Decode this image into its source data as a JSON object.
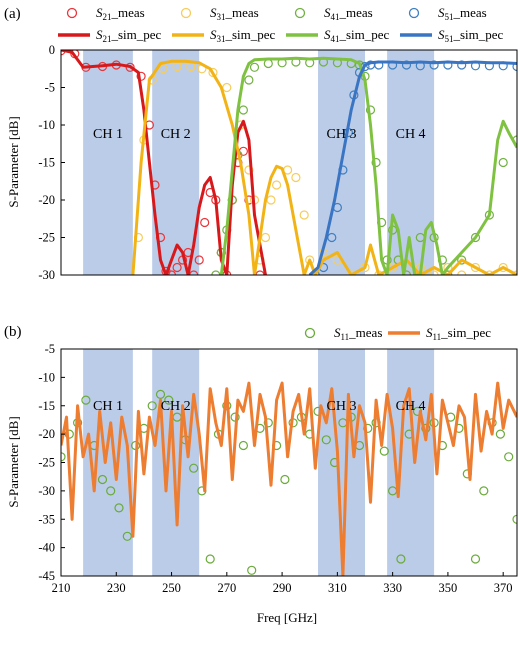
{
  "chart_data": [
    {
      "panel_label": "(a)",
      "type": "line",
      "ylabel": "S-Parameter [dB]",
      "xlabel": "",
      "xlim": [
        210,
        375
      ],
      "ylim": [
        -30,
        0
      ],
      "yticks": [
        0,
        -5,
        -10,
        -15,
        -20,
        -25,
        -30
      ],
      "grid": false,
      "legend_position": "top",
      "channel_bands": [
        {
          "label": "CH 1",
          "range": [
            218,
            236
          ]
        },
        {
          "label": "CH 2",
          "range": [
            243,
            260
          ]
        },
        {
          "label": "CH 3",
          "range": [
            303,
            320
          ]
        },
        {
          "label": "CH 4",
          "range": [
            328,
            345
          ]
        }
      ],
      "series": [
        {
          "name": "S21_meas",
          "label_main": "S",
          "label_sub": "21",
          "label_suffix": "_meas",
          "style": "marker",
          "color": "#e8363a",
          "x": [
            210,
            215,
            219,
            225,
            230,
            235,
            239,
            242,
            244,
            246,
            248,
            250,
            252,
            254,
            256,
            258,
            260,
            262,
            264,
            266,
            268,
            270,
            272,
            274,
            276,
            278,
            282
          ],
          "y": [
            -0.1,
            -0.5,
            -2.3,
            -2.2,
            -2.0,
            -2.3,
            -3.5,
            -10,
            -18,
            -25,
            -29.5,
            -30,
            -29,
            -28,
            -27,
            -30,
            -28,
            -23,
            -19,
            -20,
            -27,
            -30,
            -20,
            -15,
            -13.5,
            -20,
            -30
          ]
        },
        {
          "name": "S31_meas",
          "label_main": "S",
          "label_sub": "31",
          "label_suffix": "_meas",
          "style": "marker",
          "color": "#f6cc5c",
          "x": [
            238,
            240,
            243,
            247,
            252,
            257,
            261,
            265,
            270,
            275,
            278,
            280,
            282,
            284,
            286,
            288,
            292,
            295,
            298,
            300,
            302,
            305,
            310,
            315,
            320,
            325,
            330,
            335,
            340,
            345,
            350,
            355,
            360,
            365,
            370,
            375
          ],
          "y": [
            -25,
            -12,
            -4,
            -2.5,
            -2.2,
            -2.2,
            -2.5,
            -3,
            -5,
            -10,
            -16,
            -20,
            -28,
            -25,
            -20,
            -18,
            -16,
            -17,
            -22,
            -28,
            -30,
            -27,
            -28,
            -30,
            -29,
            -30,
            -29,
            -30,
            -29,
            -30,
            -29,
            -30,
            -29,
            -30,
            -29,
            -30
          ]
        },
        {
          "name": "S41_meas",
          "label_main": "S",
          "label_sub": "41",
          "label_suffix": "_meas",
          "style": "marker",
          "color": "#72b043",
          "x": [
            266,
            268,
            270,
            272,
            274,
            276,
            278,
            280,
            285,
            290,
            295,
            300,
            305,
            310,
            315,
            318,
            320,
            322,
            324,
            326,
            328,
            330,
            332,
            335,
            340,
            345,
            348,
            350,
            355,
            360,
            365,
            370,
            375
          ],
          "y": [
            -30,
            -27,
            -24,
            -20,
            -14,
            -8,
            -4,
            -2.3,
            -1.8,
            -1.7,
            -1.6,
            -1.7,
            -1.6,
            -1.7,
            -1.8,
            -2,
            -3.5,
            -8,
            -15,
            -23,
            -28,
            -24,
            -28,
            -30,
            -25,
            -25,
            -28,
            -30,
            -28,
            -25,
            -22,
            -15,
            -12
          ]
        },
        {
          "name": "S51_meas",
          "label_main": "S",
          "label_sub": "51",
          "label_suffix": "_meas",
          "style": "marker",
          "color": "#3f7fc0",
          "x": [
            302,
            305,
            308,
            310,
            312,
            314,
            316,
            318,
            320,
            322,
            325,
            330,
            335,
            340,
            345,
            350,
            355,
            360,
            365,
            370,
            375
          ],
          "y": [
            -30,
            -29,
            -25,
            -21,
            -16,
            -11,
            -6,
            -3,
            -2.2,
            -2,
            -2,
            -2,
            -2,
            -2.1,
            -2,
            -2,
            -2,
            -2.1,
            -2.1,
            -2.1,
            -2.2
          ]
        },
        {
          "name": "S21_sim_pec",
          "label_main": "S",
          "label_sub": "21",
          "label_suffix": "_sim_pec",
          "style": "line",
          "color": "#d7191c",
          "x": [
            210,
            214,
            218,
            225,
            230,
            235,
            238,
            240,
            242,
            244,
            246,
            248,
            250,
            252,
            254,
            256,
            258,
            260,
            262,
            264,
            266,
            268,
            270,
            272,
            274,
            276,
            278,
            280,
            284
          ],
          "y": [
            0,
            -0.3,
            -2.3,
            -2.1,
            -1.9,
            -2.2,
            -3,
            -8,
            -15,
            -22,
            -28,
            -30,
            -28,
            -26,
            -27,
            -30,
            -26,
            -21,
            -18,
            -17,
            -20,
            -28,
            -30,
            -18,
            -11,
            -9.5,
            -12,
            -22,
            -30
          ]
        },
        {
          "name": "S31_sim_pec",
          "label_main": "S",
          "label_sub": "31",
          "label_suffix": "_sim_pec",
          "style": "line",
          "color": "#f2b316",
          "x": [
            236,
            239,
            242,
            246,
            250,
            255,
            260,
            264,
            268,
            272,
            275,
            278,
            280,
            282,
            284,
            286,
            288,
            290,
            292,
            295,
            298,
            300,
            302,
            305,
            310,
            315,
            320,
            322,
            325,
            330,
            335,
            340,
            345,
            350,
            355,
            360,
            365,
            370,
            375
          ],
          "y": [
            -30,
            -15,
            -4,
            -1.8,
            -1.5,
            -1.5,
            -1.7,
            -2.5,
            -5,
            -10,
            -15,
            -22,
            -30,
            -25,
            -20,
            -17,
            -15.5,
            -15.8,
            -18,
            -24,
            -30,
            -28,
            -30,
            -28,
            -27,
            -30,
            -29,
            -26,
            -30,
            -29,
            -28,
            -30,
            -29,
            -30,
            -28,
            -29,
            -30,
            -29,
            -30
          ]
        },
        {
          "name": "S41_sim_pec",
          "label_main": "S",
          "label_sub": "41",
          "label_suffix": "_sim_pec",
          "style": "line",
          "color": "#7fc242",
          "x": [
            268,
            270,
            272,
            274,
            276,
            278,
            280,
            285,
            290,
            295,
            300,
            305,
            310,
            315,
            318,
            320,
            322,
            324,
            326,
            328,
            330,
            332,
            334,
            336,
            338,
            340,
            342,
            344,
            346,
            348,
            350,
            355,
            360,
            365,
            368,
            370,
            372,
            375
          ],
          "y": [
            -30,
            -24,
            -16,
            -8,
            -3.5,
            -1.8,
            -1.3,
            -1.2,
            -1.2,
            -1.1,
            -1.2,
            -1.1,
            -1.2,
            -1.3,
            -1.8,
            -4,
            -10,
            -18,
            -28,
            -30,
            -22,
            -24,
            -30,
            -25,
            -30,
            -30,
            -24,
            -23,
            -26,
            -30,
            -29,
            -27,
            -25,
            -22,
            -12,
            -9.5,
            -11,
            -13
          ]
        },
        {
          "name": "S51_sim_pec",
          "label_main": "S",
          "label_sub": "51",
          "label_suffix": "_sim_pec",
          "style": "line",
          "color": "#3a75c4",
          "x": [
            300,
            303,
            306,
            309,
            312,
            315,
            318,
            320,
            322,
            325,
            330,
            335,
            340,
            345,
            350,
            355,
            360,
            365,
            370,
            375
          ],
          "y": [
            -30,
            -29,
            -25,
            -20,
            -14,
            -8,
            -3.5,
            -2,
            -1.7,
            -1.6,
            -1.6,
            -1.7,
            -1.6,
            -1.7,
            -1.6,
            -1.7,
            -1.6,
            -1.7,
            -1.7,
            -1.8
          ]
        }
      ]
    },
    {
      "panel_label": "(b)",
      "type": "line",
      "ylabel": "S-Parameter [dB]",
      "xlabel": "Freq [GHz]",
      "xlim": [
        210,
        375
      ],
      "ylim": [
        -45,
        -5
      ],
      "yticks": [
        -5,
        -10,
        -15,
        -20,
        -25,
        -30,
        -35,
        -40,
        -45
      ],
      "xticks": [
        210,
        230,
        250,
        270,
        290,
        310,
        330,
        350,
        370
      ],
      "grid": false,
      "legend_position": "top-right",
      "channel_bands": [
        {
          "label": "CH 1",
          "range": [
            218,
            236
          ]
        },
        {
          "label": "CH 2",
          "range": [
            243,
            260
          ]
        },
        {
          "label": "CH 3",
          "range": [
            303,
            320
          ]
        },
        {
          "label": "CH 4",
          "range": [
            328,
            345
          ]
        }
      ],
      "series": [
        {
          "name": "S11_meas",
          "label_main": "S",
          "label_sub": "11",
          "label_suffix": "_meas",
          "style": "marker",
          "color": "#6aaa3a",
          "x": [
            210,
            213,
            216,
            219,
            222,
            225,
            228,
            231,
            234,
            237,
            240,
            243,
            246,
            249,
            252,
            255,
            258,
            261,
            264,
            267,
            270,
            273,
            276,
            279,
            282,
            285,
            288,
            291,
            294,
            297,
            300,
            303,
            306,
            309,
            312,
            315,
            318,
            321,
            324,
            327,
            330,
            333,
            336,
            339,
            342,
            345,
            348,
            351,
            354,
            357,
            360,
            363,
            366,
            369,
            372,
            375
          ],
          "y": [
            -24,
            -20,
            -18,
            -14,
            -22,
            -28,
            -30,
            -33,
            -38,
            -22,
            -19,
            -15,
            -13,
            -14,
            -17,
            -21,
            -26,
            -30,
            -42,
            -20,
            -15,
            -17,
            -22,
            -44,
            -19,
            -18,
            -22,
            -28,
            -18,
            -17,
            -20,
            -16,
            -21,
            -25,
            -18,
            -17,
            -22,
            -19,
            -18,
            -23,
            -30,
            -42,
            -20,
            -16,
            -19,
            -18,
            -22,
            -17,
            -19,
            -27,
            -42,
            -30,
            -18,
            -20,
            -24,
            -35
          ]
        },
        {
          "name": "S11_sim_pec",
          "label_main": "S",
          "label_sub": "11",
          "label_suffix": "_sim_pec",
          "style": "line",
          "color": "#ed7d31",
          "x": [
            210,
            212,
            214,
            216,
            218,
            220,
            222,
            224,
            226,
            228,
            230,
            232,
            234,
            236,
            238,
            240,
            242,
            244,
            246,
            248,
            250,
            252,
            254,
            256,
            258,
            260,
            262,
            264,
            266,
            268,
            270,
            272,
            274,
            276,
            278,
            280,
            282,
            284,
            286,
            288,
            290,
            292,
            294,
            296,
            298,
            300,
            302,
            304,
            306,
            308,
            310,
            312,
            314,
            316,
            318,
            320,
            322,
            324,
            326,
            328,
            330,
            332,
            334,
            336,
            338,
            340,
            342,
            344,
            346,
            348,
            350,
            352,
            354,
            356,
            358,
            360,
            362,
            364,
            366,
            368,
            370,
            372,
            375
          ],
          "y": [
            -22,
            -17,
            -35,
            -15,
            -24,
            -20,
            -30,
            -16,
            -25,
            -18,
            -28,
            -17,
            -22,
            -38,
            -16,
            -27,
            -17,
            -22,
            -14,
            -30,
            -16,
            -36,
            -15,
            -24,
            -13,
            -20,
            -30,
            -12,
            -18,
            -22,
            -12,
            -28,
            -14,
            -16,
            -11,
            -22,
            -13,
            -17,
            -29,
            -14,
            -11,
            -24,
            -16,
            -13,
            -20,
            -12,
            -26,
            -15,
            -18,
            -12,
            -23,
            -45,
            -13,
            -24,
            -15,
            -18,
            -32,
            -14,
            -22,
            -13,
            -19,
            -31,
            -15,
            -12,
            -25,
            -16,
            -21,
            -13,
            -27,
            -14,
            -18,
            -22,
            -15,
            -17,
            -28,
            -13,
            -23,
            -16,
            -20,
            -11,
            -19,
            -14,
            -17
          ]
        }
      ]
    }
  ]
}
